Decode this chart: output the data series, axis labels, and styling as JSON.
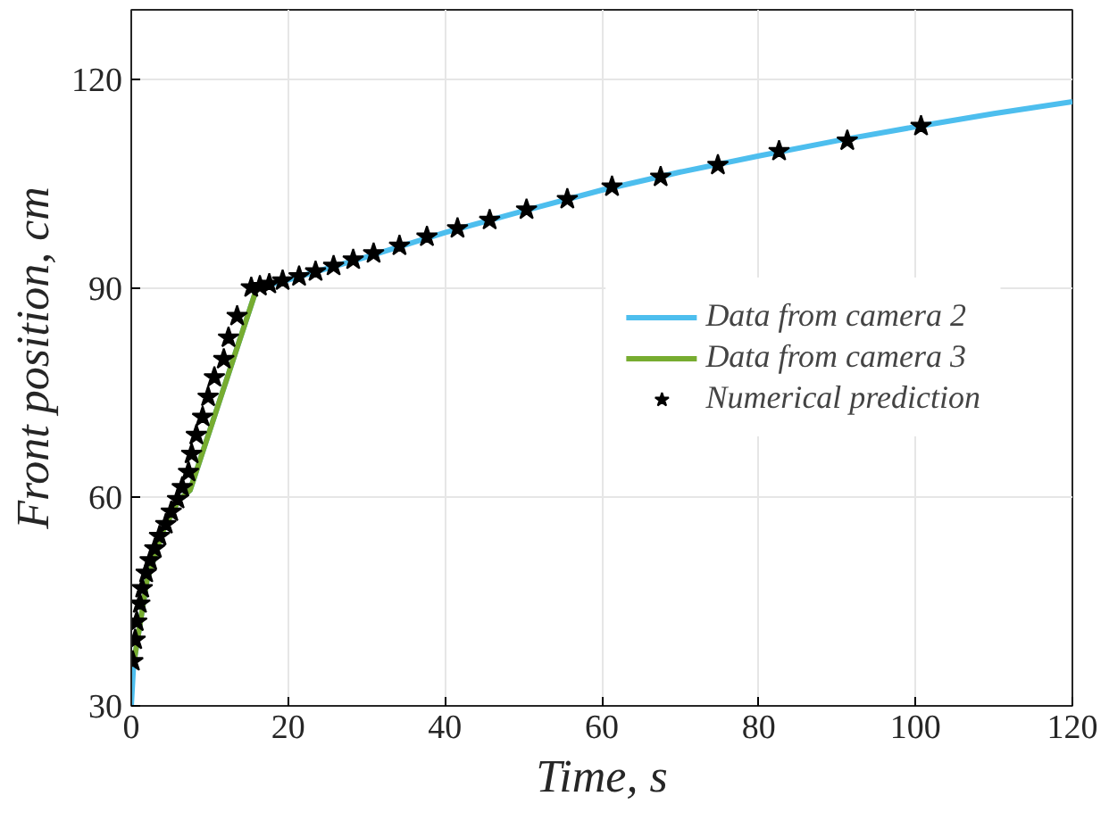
{
  "chart_data": {
    "type": "line",
    "xlabel": "Time, s",
    "ylabel": "Front position, cm",
    "xlim": [
      0,
      120
    ],
    "ylim": [
      30,
      130
    ],
    "xticks": [
      0,
      20,
      40,
      60,
      80,
      100,
      120
    ],
    "yticks": [
      30,
      60,
      90,
      120
    ],
    "grid": true,
    "legend": "right",
    "series": [
      {
        "name": "Data from camera 2",
        "color": "#4dbeee",
        "x": [
          0,
          0.3,
          2,
          4,
          6,
          7.5,
          16,
          20,
          30,
          40,
          50,
          60,
          70,
          80,
          90,
          100,
          110,
          120
        ],
        "values": [
          30,
          36,
          48,
          55,
          59.5,
          61,
          90,
          91.2,
          94.5,
          98,
          101.1,
          104.1,
          106.7,
          109,
          111.2,
          113.2,
          115.1,
          116.8
        ]
      },
      {
        "name": "Data from camera 3",
        "color": "#77ac30",
        "x": [
          0.3,
          2,
          4,
          6,
          7.5,
          16
        ],
        "values": [
          36,
          48,
          55,
          59.5,
          61,
          90
        ]
      },
      {
        "name": "Numerical prediction",
        "color": "#000000",
        "type": "scatter",
        "marker": "star",
        "x": [
          0.2,
          0.5,
          0.7,
          1.1,
          1.4,
          1.9,
          2.4,
          3.0,
          3.6,
          4.4,
          5.1,
          5.9,
          6.5,
          7.3,
          7.7,
          8.3,
          9.1,
          9.8,
          10.6,
          11.8,
          12.4,
          13.5,
          15.3,
          16.4,
          17.6,
          19.3,
          21.4,
          23.5,
          25.8,
          28.3,
          30.9,
          34.2,
          37.7,
          41.6,
          45.7,
          50.4,
          55.6,
          61.3,
          67.5,
          74.8,
          82.6,
          91.3,
          100.7
        ],
        "values": [
          36.4,
          39.5,
          42.1,
          44.7,
          46.9,
          49.1,
          50.9,
          52.6,
          54.4,
          56.1,
          57.9,
          59.7,
          61.4,
          63.6,
          66.2,
          68.9,
          71.5,
          74.4,
          77.2,
          79.8,
          82.9,
          86.0,
          90.1,
          90.3,
          90.6,
          91.1,
          91.7,
          92.4,
          93.2,
          94.1,
          95.0,
          96.1,
          97.4,
          98.6,
          99.8,
          101.3,
          102.8,
          104.6,
          106.0,
          107.7,
          109.7,
          111.2,
          113.3
        ]
      }
    ]
  }
}
